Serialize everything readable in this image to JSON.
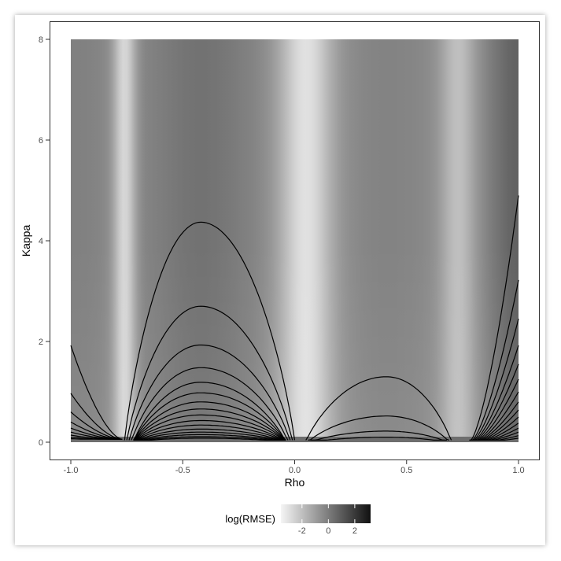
{
  "chart_data": {
    "type": "heatmap",
    "title": "",
    "xlabel": "Rho",
    "ylabel": "Kappa",
    "xlim": [
      -1.0,
      1.0
    ],
    "ylim": [
      0,
      8
    ],
    "x_ticks": [
      {
        "value": -1.0,
        "label": "-1.0"
      },
      {
        "value": -0.5,
        "label": "-0.5"
      },
      {
        "value": 0.0,
        "label": "0.0"
      },
      {
        "value": 0.5,
        "label": "0.5"
      },
      {
        "value": 1.0,
        "label": "1.0"
      }
    ],
    "y_ticks": [
      {
        "value": 0,
        "label": "0"
      },
      {
        "value": 2,
        "label": "2"
      },
      {
        "value": 4,
        "label": "4"
      },
      {
        "value": 6,
        "label": "6"
      },
      {
        "value": 8,
        "label": "8"
      }
    ],
    "fill": {
      "name": "log(RMSE)",
      "range": [
        -3.6,
        3.2
      ],
      "low_color": "#f5f5f5",
      "high_color": "#111111",
      "ticks": [
        {
          "value": -2,
          "label": "-2"
        },
        {
          "value": 0,
          "label": "0"
        },
        {
          "value": 2,
          "label": "2"
        }
      ]
    },
    "contours": {
      "left_lobe": {
        "x_range": [
          -0.76,
          0.0
        ],
        "peak_x": -0.42,
        "peak_heights": [
          4.37,
          2.7,
          1.93,
          1.48,
          1.19,
          0.98,
          0.8,
          0.66,
          0.54,
          0.43,
          0.34,
          0.26,
          0.2,
          0.15,
          0.11,
          0.08
        ]
      },
      "right_lobe": {
        "x_range": [
          0.05,
          0.7
        ],
        "peak_x": 0.41,
        "peak_heights": [
          1.3,
          0.52,
          0.22,
          0.1
        ]
      },
      "left_edge_kappa_at_rho_minus_1": [
        1.92,
        0.97,
        0.6,
        0.4,
        0.28,
        0.2,
        0.14,
        0.1,
        0.07
      ],
      "right_edge_kappa_at_rho_1": [
        4.9,
        3.22,
        2.45,
        1.92,
        1.55,
        1.25,
        1.0,
        0.8,
        0.64,
        0.5,
        0.38,
        0.28,
        0.2,
        0.13,
        0.08
      ]
    },
    "legend_position": "bottom",
    "grid": false
  }
}
